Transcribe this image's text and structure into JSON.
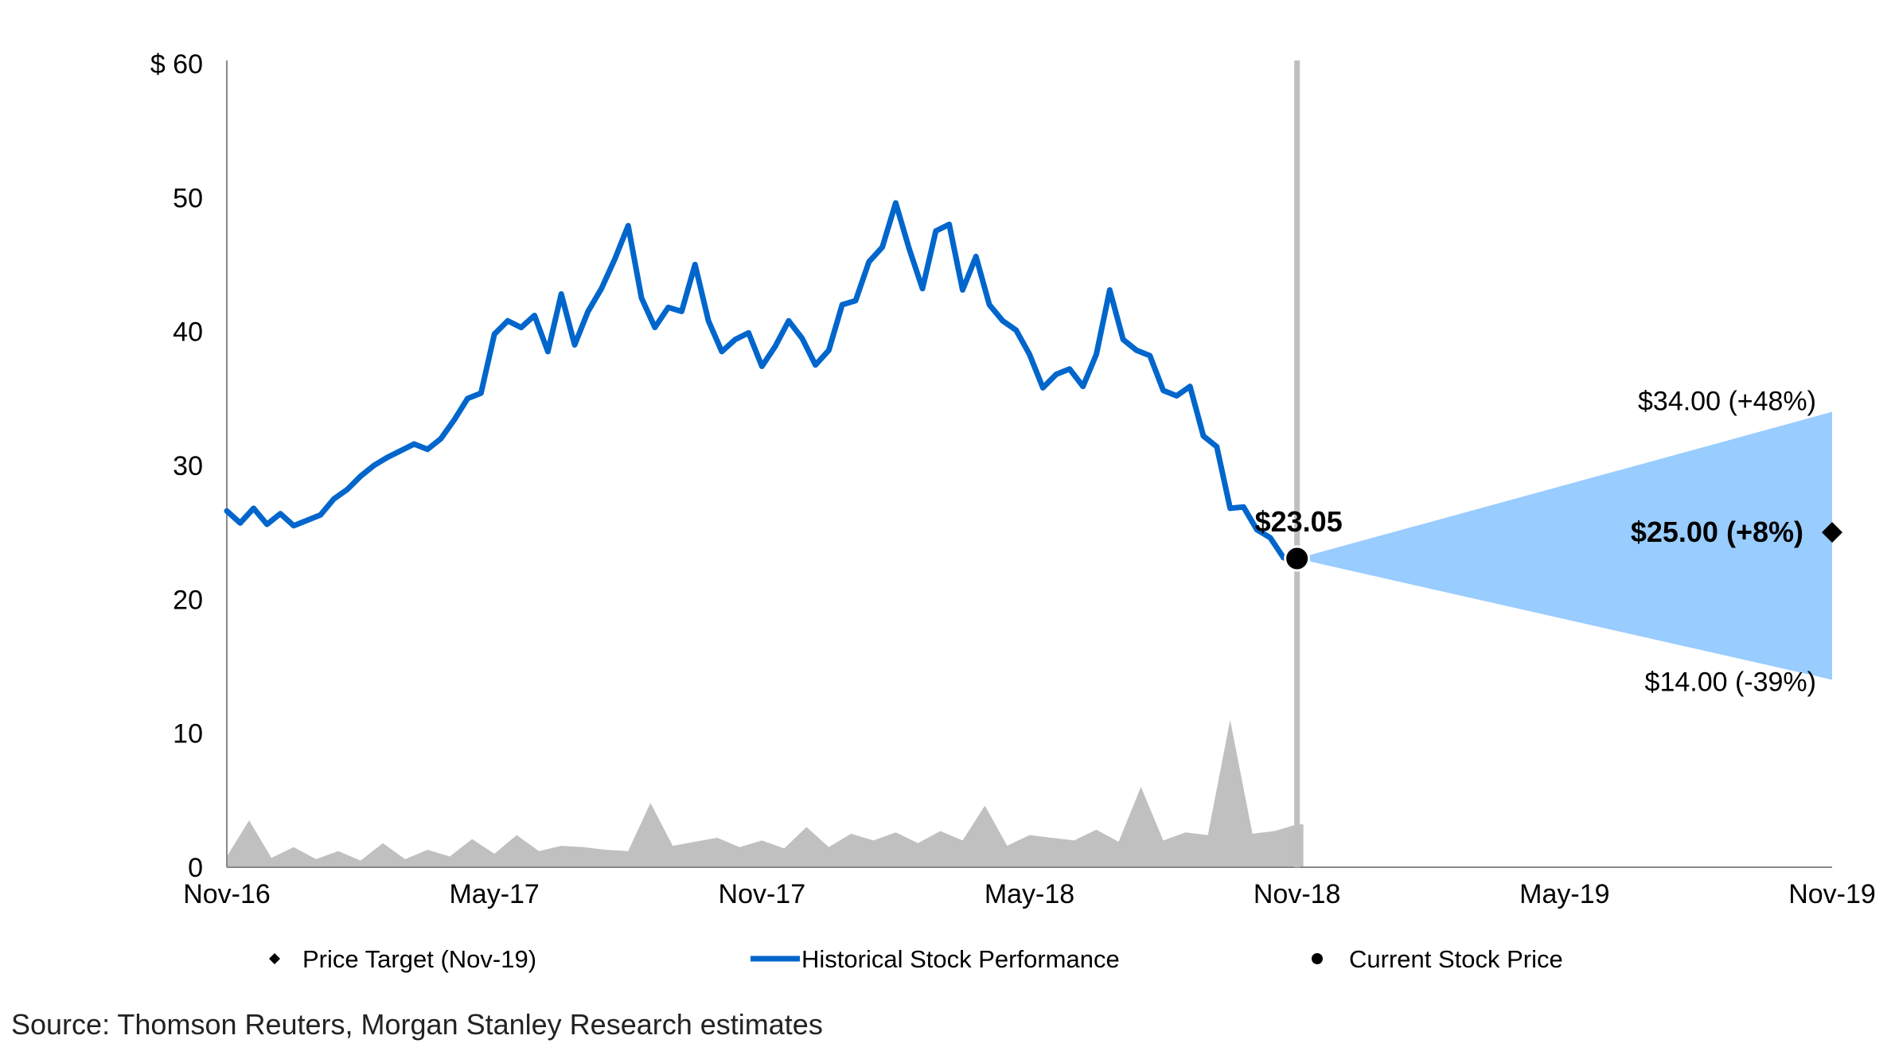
{
  "chart_data": {
    "type": "line",
    "title": "",
    "xlabel": "",
    "ylabel": "",
    "x_ticks": [
      "Nov-16",
      "May-17",
      "Nov-17",
      "May-18",
      "Nov-18",
      "May-19",
      "Nov-19"
    ],
    "y_ticks": [
      "$ 60",
      "50",
      "40",
      "30",
      "20",
      "10",
      "0"
    ],
    "xlim": [
      0,
      36
    ],
    "ylim": [
      0,
      60
    ],
    "series": [
      {
        "name": "Historical Stock Performance",
        "color": "#0066CC",
        "x": [
          0,
          0.3,
          0.6,
          0.9,
          1.2,
          1.5,
          1.8,
          2.1,
          2.4,
          2.7,
          3.0,
          3.3,
          3.6,
          3.9,
          4.2,
          4.5,
          4.8,
          5.1,
          5.4,
          5.7,
          6.0,
          6.3,
          6.6,
          6.9,
          7.2,
          7.5,
          7.8,
          8.1,
          8.4,
          8.7,
          9.0,
          9.3,
          9.6,
          9.9,
          10.2,
          10.5,
          10.8,
          11.1,
          11.4,
          11.7,
          12.0,
          12.3,
          12.6,
          12.9,
          13.2,
          13.5,
          13.8,
          14.1,
          14.4,
          14.7,
          15.0,
          15.3,
          15.6,
          15.9,
          16.2,
          16.5,
          16.8,
          17.1,
          17.4,
          17.7,
          18.0,
          18.3,
          18.6,
          18.9,
          19.2,
          19.5,
          19.8,
          20.1,
          20.4,
          20.7,
          21.0,
          21.3,
          21.6,
          21.9,
          22.2,
          22.5,
          22.8,
          23.1,
          23.4,
          23.7,
          24.0
        ],
        "values": [
          26.6,
          25.7,
          26.8,
          25.6,
          26.4,
          25.5,
          25.9,
          26.3,
          27.5,
          28.2,
          29.2,
          30.0,
          30.6,
          31.1,
          31.6,
          31.2,
          32.0,
          33.4,
          35.0,
          35.4,
          39.8,
          40.8,
          40.3,
          41.2,
          38.5,
          42.8,
          39.0,
          41.5,
          43.2,
          45.4,
          47.9,
          42.5,
          40.3,
          41.8,
          41.5,
          45.0,
          40.8,
          38.5,
          39.4,
          39.9,
          37.4,
          38.9,
          40.8,
          39.5,
          37.5,
          38.6,
          42.0,
          42.3,
          45.2,
          46.3,
          49.6,
          46.2,
          43.2,
          47.5,
          48.0,
          43.1,
          45.6,
          42.0,
          40.8,
          40.1,
          38.3,
          35.8,
          36.8,
          37.2,
          35.9,
          38.3,
          43.1,
          39.4,
          38.6,
          38.2,
          35.6,
          35.2,
          35.9,
          32.2,
          31.4,
          26.8,
          26.9,
          25.2,
          24.6,
          23.1,
          23.05
        ]
      }
    ],
    "volume": {
      "name": "Volume",
      "color": "#C0C0C0",
      "x": [
        0,
        0.5,
        1.0,
        1.5,
        2.0,
        2.5,
        3.0,
        3.5,
        4.0,
        4.5,
        5.0,
        5.5,
        6.0,
        6.5,
        7.0,
        7.5,
        8.0,
        8.5,
        9.0,
        9.5,
        10.0,
        10.5,
        11.0,
        11.5,
        12.0,
        12.5,
        13.0,
        13.5,
        14.0,
        14.5,
        15.0,
        15.5,
        16.0,
        16.5,
        17.0,
        17.5,
        18.0,
        18.5,
        19.0,
        19.5,
        20.0,
        20.5,
        21.0,
        21.5,
        22.0,
        22.5,
        23.0,
        23.5,
        24.0
      ],
      "values": [
        0.8,
        3.5,
        0.7,
        1.5,
        0.6,
        1.2,
        0.5,
        1.8,
        0.6,
        1.3,
        0.8,
        2.1,
        1.0,
        2.4,
        1.2,
        1.6,
        1.5,
        1.3,
        1.2,
        4.8,
        1.6,
        1.9,
        2.2,
        1.5,
        2.0,
        1.4,
        3.0,
        1.5,
        2.5,
        2.0,
        2.6,
        1.8,
        2.7,
        2.0,
        4.6,
        1.6,
        2.4,
        2.2,
        2.0,
        2.8,
        1.9,
        6.0,
        2.0,
        2.6,
        2.4,
        11.0,
        2.5,
        2.7,
        3.2
      ]
    },
    "current_price": {
      "label": "$23.05",
      "x": 24,
      "y": 23.05
    },
    "price_target": {
      "x": 36,
      "base": 25.0,
      "bull": 34.0,
      "bear": 14.0,
      "base_label": "$25.00 (+8%)",
      "bull_label": "$34.00 (+48%)",
      "bear_label": "$14.00 (-39%)",
      "cone_color": "#99CCFF"
    },
    "divider_x": 24,
    "legend": [
      {
        "label": "Price Target (Nov-19)",
        "marker": "diamond"
      },
      {
        "label": "Historical Stock Performance",
        "marker": "line"
      },
      {
        "label": "Current Stock Price",
        "marker": "circle"
      }
    ],
    "legend_position": "bottom"
  },
  "source": "Source: Thomson Reuters, Morgan Stanley Research estimates"
}
